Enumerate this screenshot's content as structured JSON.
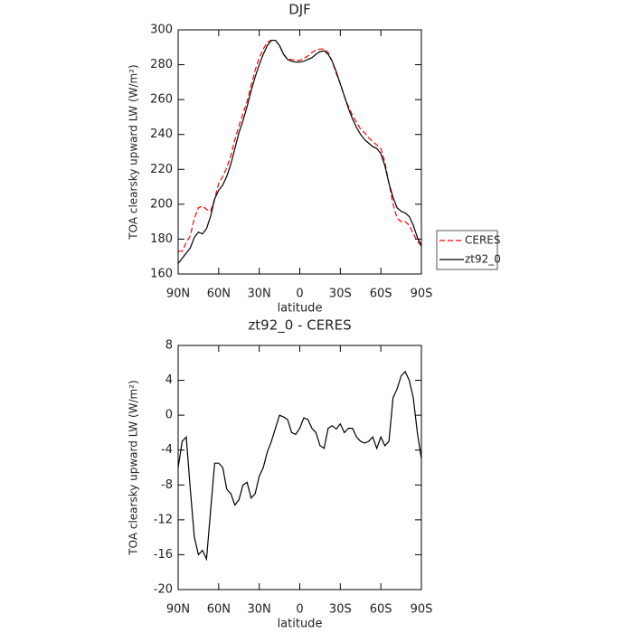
{
  "chart_data": [
    {
      "type": "line",
      "title": "DJF",
      "xlabel": "latitude",
      "ylabel": "TOA clearsky upward LW (W/m²)",
      "x": [
        90,
        87,
        84,
        81,
        78,
        75,
        72,
        69,
        66,
        63,
        60,
        57,
        54,
        51,
        48,
        45,
        42,
        39,
        36,
        33,
        30,
        27,
        24,
        21,
        18,
        15,
        12,
        9,
        6,
        3,
        0,
        -3,
        -6,
        -9,
        -12,
        -15,
        -18,
        -21,
        -24,
        -27,
        -30,
        -33,
        -36,
        -39,
        -42,
        -45,
        -48,
        -51,
        -54,
        -57,
        -60,
        -63,
        -66,
        -69,
        -72,
        -75,
        -78,
        -81,
        -84,
        -87,
        -90
      ],
      "series": [
        {
          "name": "CERES",
          "color": "#ff0000",
          "dashed": true,
          "values": [
            173,
            173,
            178,
            182,
            192,
            198,
            199,
            197,
            196,
            203,
            212,
            216,
            221,
            228,
            237,
            245,
            252,
            259,
            268,
            277,
            284,
            289,
            293,
            294,
            294,
            291,
            286,
            283,
            283,
            282.5,
            282.5,
            283.5,
            285,
            287,
            288.5,
            289,
            289,
            287,
            282,
            275,
            269,
            262,
            256,
            251,
            247,
            243,
            241,
            238,
            236,
            234,
            232,
            224,
            212,
            200,
            192,
            190,
            190,
            188,
            183,
            179,
            176
          ]
        },
        {
          "name": "zt92_0",
          "color": "#000000",
          "dashed": false,
          "values": [
            166,
            169,
            172,
            175,
            181,
            184,
            183,
            186,
            193,
            203,
            208,
            211,
            216,
            223,
            232,
            241,
            248,
            256,
            265,
            273,
            280,
            286,
            291,
            294,
            294,
            291,
            286,
            283,
            282,
            281.5,
            281.5,
            282,
            283,
            284,
            286,
            287.5,
            288,
            286,
            282,
            276,
            269,
            262,
            255,
            249,
            244,
            240,
            237,
            235,
            233,
            232,
            229,
            222,
            212,
            204,
            198,
            196,
            195,
            193,
            188,
            181,
            176
          ]
        }
      ],
      "xlim": [
        90,
        -90
      ],
      "xticks": [
        {
          "value": 90,
          "label": "90N"
        },
        {
          "value": 60,
          "label": "60N"
        },
        {
          "value": 30,
          "label": "30N"
        },
        0,
        {
          "value": -30,
          "label": "30S"
        },
        {
          "value": -60,
          "label": "60S"
        },
        {
          "value": -90,
          "label": "90S"
        }
      ],
      "ylim": [
        160,
        300
      ],
      "yticks": [
        160,
        180,
        200,
        220,
        240,
        260,
        280,
        300
      ],
      "legend": "outside-right"
    },
    {
      "type": "line",
      "title": "zt92_0 - CERES",
      "xlabel": "latitude",
      "ylabel": "TOA clearsky upward LW (W/m²)",
      "x": [
        90,
        87,
        84,
        81,
        78,
        75,
        72,
        69,
        66,
        63,
        60,
        57,
        54,
        51,
        48,
        45,
        42,
        39,
        36,
        33,
        30,
        27,
        24,
        21,
        18,
        15,
        12,
        9,
        6,
        3,
        0,
        -3,
        -6,
        -9,
        -12,
        -15,
        -18,
        -21,
        -24,
        -27,
        -30,
        -33,
        -36,
        -39,
        -42,
        -45,
        -48,
        -51,
        -54,
        -57,
        -60,
        -63,
        -66,
        -69,
        -72,
        -75,
        -78,
        -81,
        -84,
        -87,
        -90
      ],
      "color": "#000000",
      "values": [
        -6,
        -3,
        -2.5,
        -8.5,
        -14,
        -16,
        -15.5,
        -16.5,
        -11,
        -5.5,
        -5.5,
        -6,
        -8.5,
        -9,
        -10.3,
        -9.7,
        -8,
        -7.7,
        -9.5,
        -9,
        -7,
        -6,
        -4.2,
        -3,
        -1.5,
        0,
        -0.2,
        -0.5,
        -2,
        -2.2,
        -1.5,
        -0.3,
        -0.5,
        -1.5,
        -2,
        -3.5,
        -3.8,
        -1.5,
        -1.2,
        -1.6,
        -1,
        -2,
        -1.5,
        -1.5,
        -2.5,
        -3,
        -3.2,
        -3,
        -2.5,
        -3.8,
        -2.5,
        -3.5,
        -3,
        2,
        3,
        4.5,
        5,
        4,
        2,
        -2,
        -5
      ],
      "xlim": [
        90,
        -90
      ],
      "xticks": [
        {
          "value": 90,
          "label": "90N"
        },
        {
          "value": 60,
          "label": "60N"
        },
        {
          "value": 30,
          "label": "30N"
        },
        0,
        {
          "value": -30,
          "label": "30S"
        },
        {
          "value": -60,
          "label": "60S"
        },
        {
          "value": -90,
          "label": "90S"
        }
      ],
      "ylim": [
        -20,
        8
      ],
      "yticks": [
        -20,
        -16,
        -12,
        -8,
        -4,
        0,
        4,
        8
      ]
    }
  ]
}
